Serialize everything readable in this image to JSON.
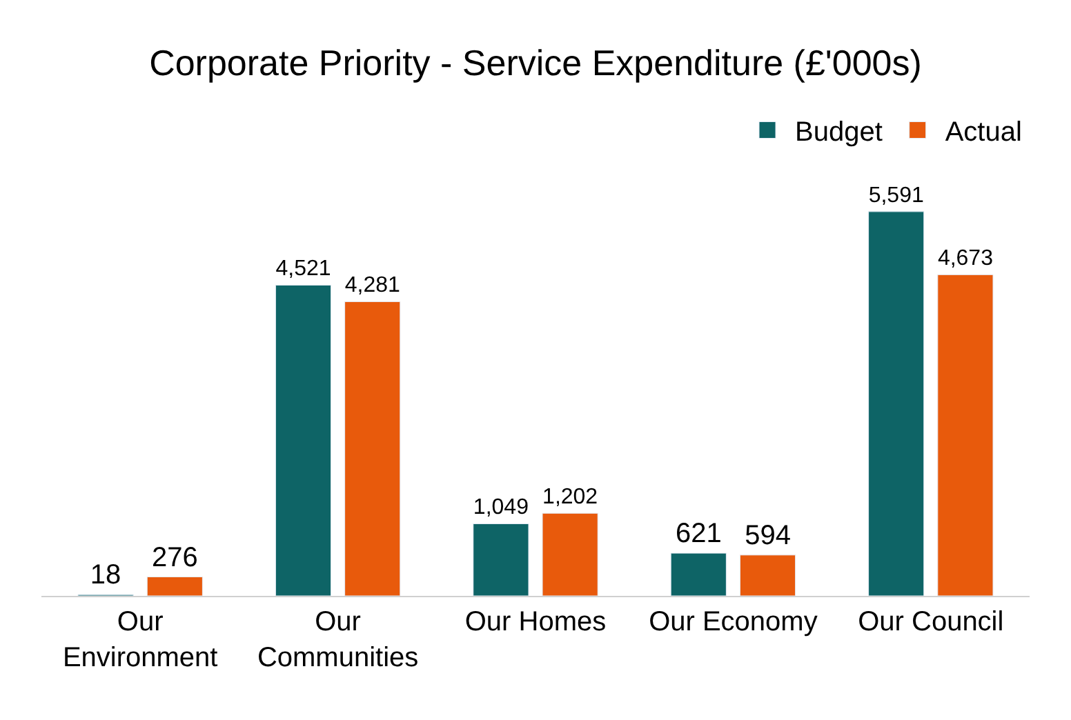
{
  "chart_data": {
    "type": "bar",
    "title": "Corporate Priority - Service Expenditure (£'000s)",
    "categories": [
      "Our Environment",
      "Our Communities",
      "Our Homes",
      "Our Economy",
      "Our Council"
    ],
    "series": [
      {
        "name": "Budget",
        "color": "#0e6466",
        "values": [
          18,
          4521,
          1049,
          621,
          5591
        ],
        "value_labels": [
          "18",
          "4,521",
          "1,049",
          "621",
          "5,591"
        ]
      },
      {
        "name": "Actual",
        "color": "#e85a0c",
        "values": [
          276,
          4281,
          1202,
          594,
          4673
        ],
        "value_labels": [
          "276",
          "4,281",
          "1,202",
          "594",
          "4,673"
        ]
      }
    ],
    "legend": "top right"
  }
}
